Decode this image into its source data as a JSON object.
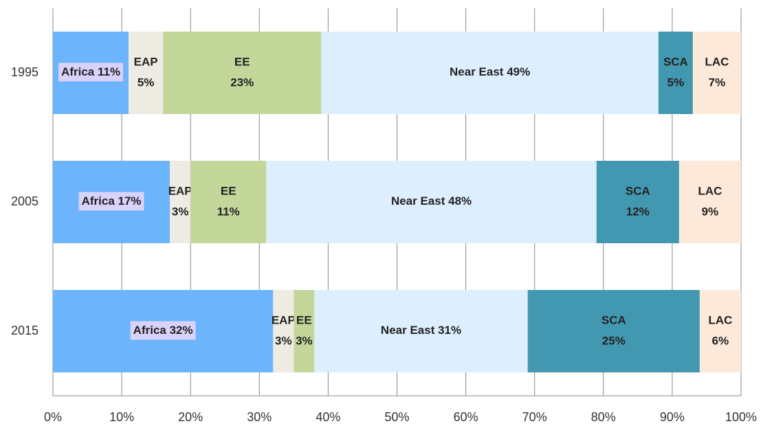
{
  "chart_data": {
    "type": "stacked_barh",
    "categories": [
      "1995",
      "2005",
      "2015"
    ],
    "series": [
      {
        "name": "Africa",
        "color": "#6cb4fc",
        "values": [
          11,
          17,
          32
        ],
        "value_labels": [
          "11%",
          "17%",
          "32%"
        ]
      },
      {
        "name": "EAP",
        "color": "#eeebe3",
        "values": [
          5,
          3,
          3
        ],
        "value_labels": [
          "5%",
          "3%",
          "3%"
        ]
      },
      {
        "name": "EE",
        "color": "#c4d79b",
        "values": [
          23,
          11,
          3
        ],
        "value_labels": [
          "23%",
          "11%",
          "3%"
        ]
      },
      {
        "name": "Near East",
        "color": "#ddeeff",
        "values": [
          49,
          48,
          31
        ],
        "value_labels": [
          "49%",
          "48%",
          "31%"
        ]
      },
      {
        "name": "SCA",
        "color": "#4298b0",
        "values": [
          5,
          12,
          25
        ],
        "value_labels": [
          "5%",
          "12%",
          "25%"
        ]
      },
      {
        "name": "LAC",
        "color": "#fde9d9",
        "values": [
          7,
          9,
          6
        ],
        "value_labels": [
          "7%",
          "9%",
          "6%"
        ]
      }
    ],
    "xlim": [
      0,
      100
    ],
    "xticks": [
      {
        "value": 0,
        "label": "0%"
      },
      {
        "value": 10,
        "label": "10%"
      },
      {
        "value": 20,
        "label": "20%"
      },
      {
        "value": 30,
        "label": "30%"
      },
      {
        "value": 40,
        "label": "40%"
      },
      {
        "value": 50,
        "label": "50%"
      },
      {
        "value": 60,
        "label": "60%"
      },
      {
        "value": 70,
        "label": "70%"
      },
      {
        "value": 80,
        "label": "80%"
      },
      {
        "value": 90,
        "label": "90%"
      },
      {
        "value": 100,
        "label": "100%"
      }
    ],
    "grid": true
  }
}
